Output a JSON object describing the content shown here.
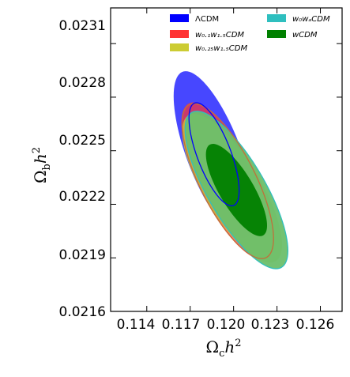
{
  "chart_data": {
    "type": "contour",
    "x_axis": {
      "label_main": "Ω",
      "label_sub": "c",
      "label_tail": "h",
      "label_sup": "2",
      "range": [
        0.1115,
        0.1275
      ],
      "ticks": [
        0.114,
        0.117,
        0.12,
        0.123,
        0.126
      ],
      "tick_labels": [
        "0.114",
        "0.117",
        "0.120",
        "0.123",
        "0.126"
      ]
    },
    "y_axis": {
      "label_main": "Ω",
      "label_sub": "b",
      "label_tail": "h",
      "label_sup": "2",
      "range": [
        0.0216,
        0.0233
      ],
      "ticks": [
        0.0216,
        0.0219,
        0.0222,
        0.0225,
        0.0228,
        0.0231
      ],
      "tick_labels": [
        "0.0216",
        "0.0219",
        "0.0222",
        "0.0225",
        "0.0228",
        "0.0231"
      ]
    },
    "grid": false,
    "legend_placement": "top-right",
    "legend": [
      {
        "key": "lcdm",
        "text": "ΛCDM",
        "color": "#0000ff"
      },
      {
        "key": "w0wa",
        "text": "w₀wₐCDM",
        "color": "#2fbfbf"
      },
      {
        "key": "w01w15",
        "text": "w₀.₁w₁.₅CDM",
        "color": "#ff3333"
      },
      {
        "key": "wcdm",
        "text": "wCDM",
        "color": "#008000"
      },
      {
        "key": "w025w15",
        "text": "w₀.₂₅w₁.₅CDM",
        "color": "#cccc33"
      }
    ],
    "series": [
      {
        "name": "ΛCDM",
        "color": "#0000ff",
        "center": [
          0.11865,
          0.02248
        ],
        "sigma_x": 0.00114,
        "sigma_y": 0.00019,
        "rho": -0.7,
        "levels": [
          "68%",
          "95%"
        ]
      },
      {
        "name": "w₀.₂₅w₁.₅CDM",
        "color": "#cccc33",
        "center": [
          0.1199,
          0.02229
        ],
        "sigma_x": 0.00141,
        "sigma_y": 0.00017,
        "rho": -0.76,
        "levels": [
          "68%",
          "95%"
        ]
      },
      {
        "name": "w₀.₁w₁.₅CDM",
        "color": "#ff3333",
        "center": [
          0.1196,
          0.02233
        ],
        "sigma_x": 0.00131,
        "sigma_y": 0.00018,
        "rho": -0.74,
        "levels": [
          "68%",
          "95%"
        ]
      },
      {
        "name": "w₀wₐCDM",
        "color": "#2fbfbf",
        "center": [
          0.1202,
          0.02228
        ],
        "sigma_x": 0.00145,
        "sigma_y": 0.00018,
        "rho": -0.77,
        "levels": [
          "68%",
          "95%"
        ]
      },
      {
        "name": "wCDM",
        "color": "#008000",
        "center": [
          0.1202,
          0.02228
        ],
        "sigma_x": 0.00139,
        "sigma_y": 0.00017,
        "rho": -0.77,
        "levels": [
          "68%",
          "95%"
        ]
      }
    ]
  }
}
